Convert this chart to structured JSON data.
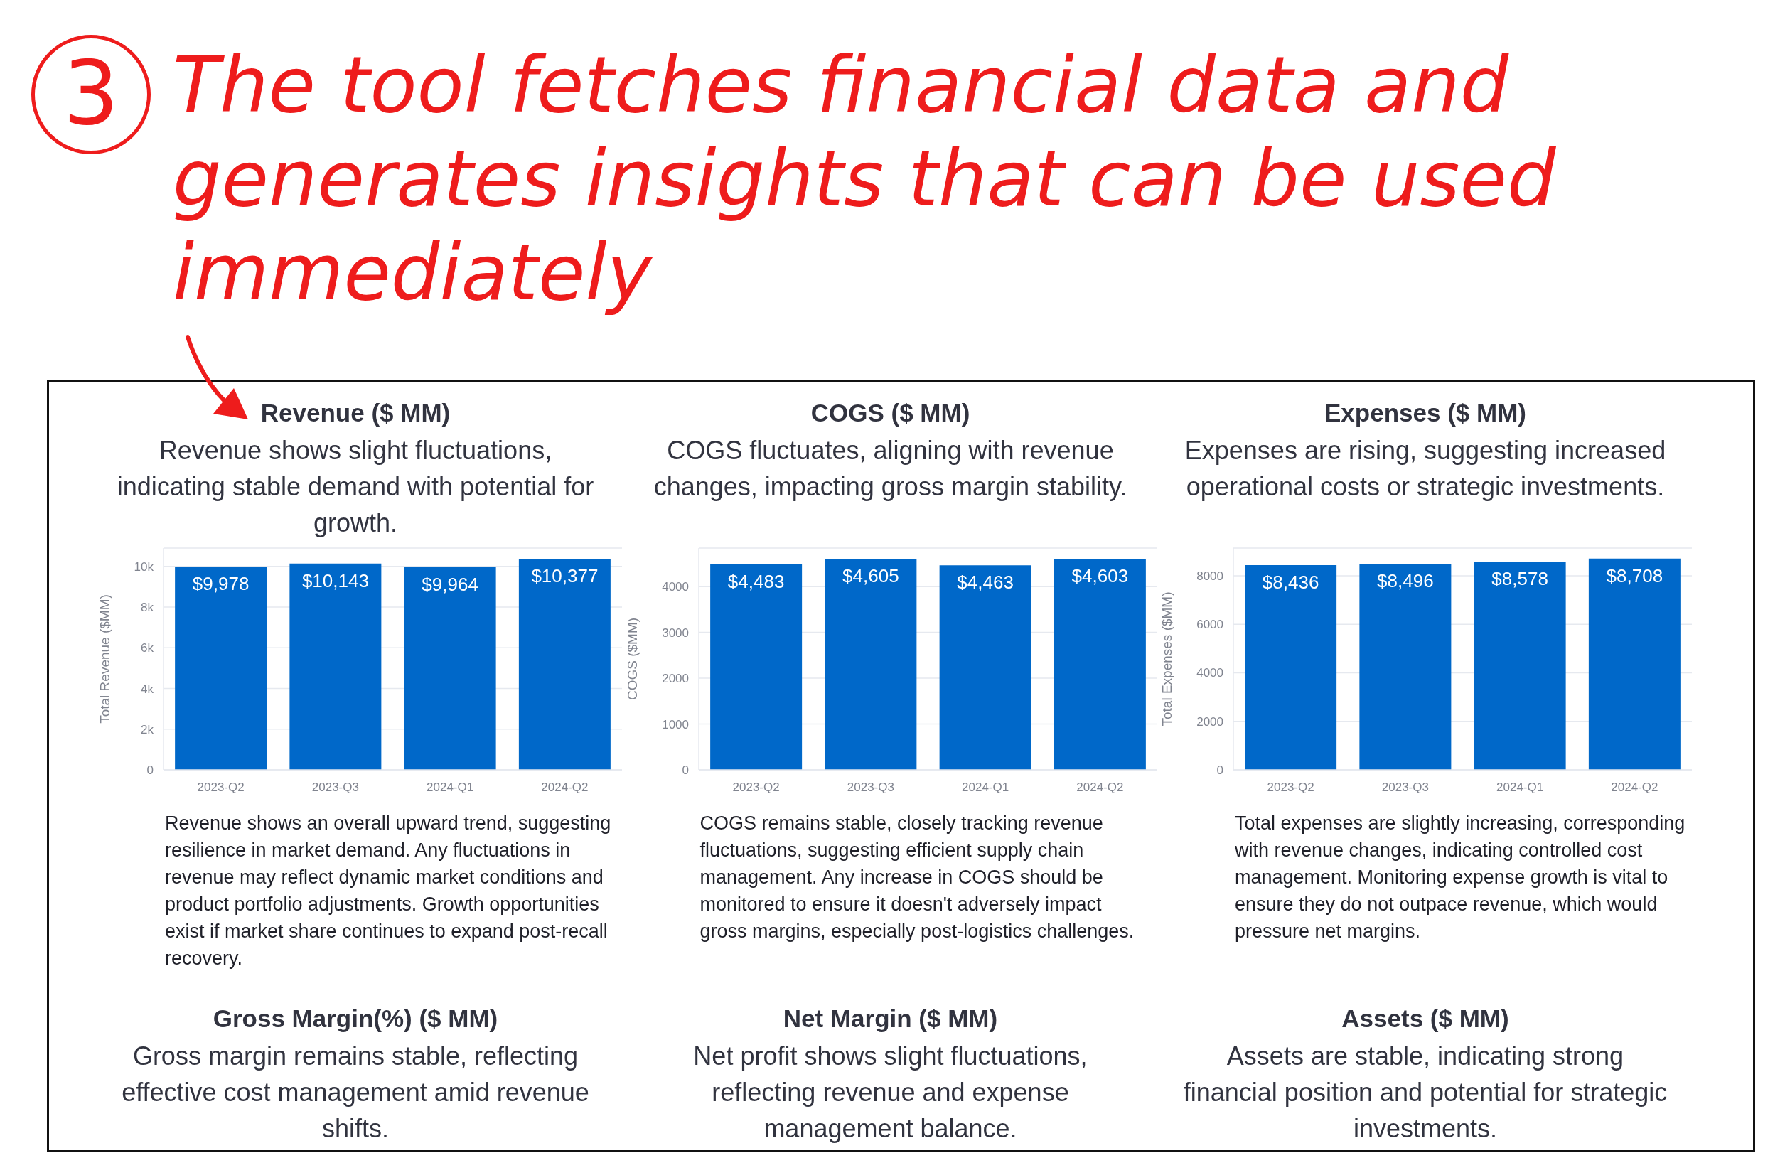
{
  "chart_data": [
    {
      "type": "other",
      "title": "The tool fetches financial data and generates insights that can be used immediately",
      "annotations": [
        "3"
      ]
    },
    {
      "type": "bar",
      "title": "Revenue ($ MM)",
      "subtitle": "Revenue shows slight fluctuations, indicating stable demand with potential for growth.",
      "categories": [
        "2023-Q2",
        "2023-Q3",
        "2024-Q1",
        "2024-Q2"
      ],
      "values": [
        9978,
        10143,
        9964,
        10377
      ],
      "value_labels": [
        "$9,978",
        "$10,143",
        "$9,964",
        "$10,377"
      ],
      "color": "#0068c9",
      "ylabel": "Total Revenue ($MM)",
      "ylim": [
        0,
        10900
      ],
      "yticks": [
        0,
        {
          "value": 2000,
          "label": "2k"
        },
        {
          "value": 4000,
          "label": "4k"
        },
        {
          "value": 6000,
          "label": "6k"
        },
        {
          "value": 8000,
          "label": "8k"
        },
        {
          "value": 10000,
          "label": "10k"
        }
      ],
      "grid": "y",
      "annotations": [
        "Revenue shows an overall upward trend, suggesting resilience in market demand. Any fluctuations in revenue may reflect dynamic market conditions and product portfolio adjustments. Growth opportunities exist if market share continues to expand post-recall recovery."
      ]
    },
    {
      "type": "bar",
      "title": "COGS ($ MM)",
      "subtitle": "COGS fluctuates, aligning with revenue changes, impacting gross margin stability.",
      "categories": [
        "2023-Q2",
        "2023-Q3",
        "2024-Q1",
        "2024-Q2"
      ],
      "values": [
        4483,
        4605,
        4463,
        4603
      ],
      "value_labels": [
        "$4,483",
        "$4,605",
        "$4,463",
        "$4,603"
      ],
      "color": "#0068c9",
      "ylabel": "COGS ($MM)",
      "ylim": [
        0,
        4840
      ],
      "yticks": [
        0,
        1000,
        2000,
        3000,
        4000
      ],
      "grid": "y",
      "annotations": [
        "COGS remains stable, closely tracking revenue fluctuations, suggesting efficient supply chain management. Any increase in COGS should be monitored to ensure it doesn't adversely impact gross margins, especially post-logistics challenges."
      ]
    },
    {
      "type": "bar",
      "title": "Expenses ($ MM)",
      "subtitle": "Expenses are rising, suggesting increased operational costs or strategic investments.",
      "categories": [
        "2023-Q2",
        "2023-Q3",
        "2024-Q1",
        "2024-Q2"
      ],
      "values": [
        8436,
        8496,
        8578,
        8708
      ],
      "value_labels": [
        "$8,436",
        "$8,496",
        "$8,578",
        "$8,708"
      ],
      "color": "#0068c9",
      "ylabel": "Total Expenses ($MM)",
      "ylim": [
        0,
        9140
      ],
      "yticks": [
        0,
        2000,
        4000,
        6000,
        8000
      ],
      "grid": "y",
      "annotations": [
        "Total expenses are slightly increasing, corresponding with revenue changes, indicating controlled cost management. Monitoring expense growth is vital to ensure they do not outpace revenue, which would pressure net margins."
      ]
    },
    {
      "type": "other",
      "title": "Gross Margin(%) ($ MM)",
      "subtitle": "Gross margin remains stable, reflecting effective cost management amid revenue shifts."
    },
    {
      "type": "other",
      "title": "Net Margin ($ MM)",
      "subtitle": "Net profit shows slight fluctuations, reflecting revenue and expense management balance."
    },
    {
      "type": "other",
      "title": "Assets ($ MM)",
      "subtitle": "Assets are stable, indicating strong financial position and potential for strategic investments."
    }
  ]
}
